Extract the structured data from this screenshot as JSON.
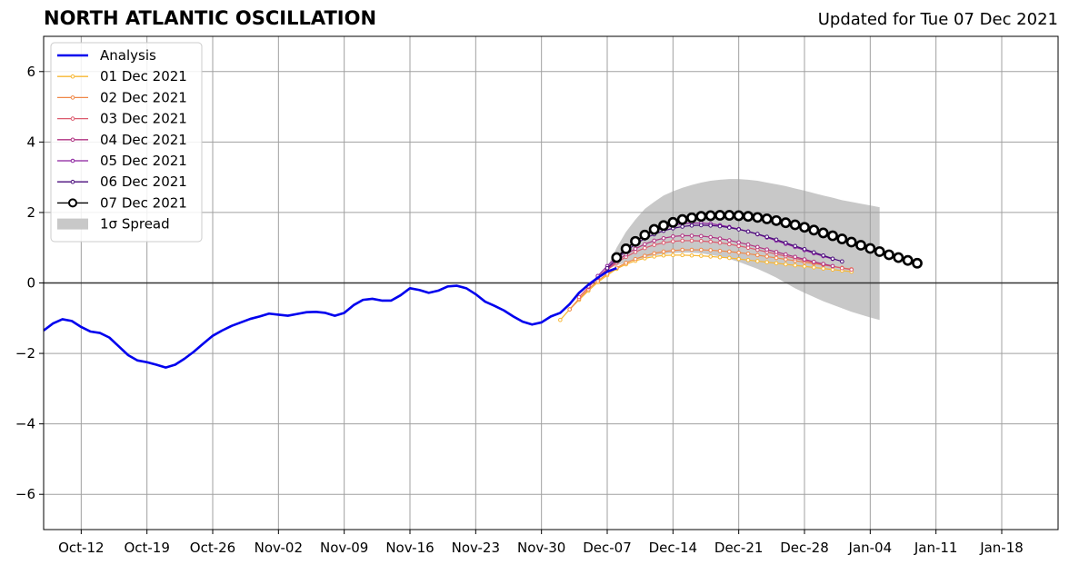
{
  "header": {
    "title": "NORTH ATLANTIC OSCILLATION",
    "updated": "Updated for Tue 07 Dec 2021"
  },
  "colors": {
    "analysis": "#0000ee",
    "spread": "#c8c8c8",
    "grid": "#a0a0a0",
    "fc_01": "#f7b733",
    "fc_02": "#f08848",
    "fc_03": "#dc5a6e",
    "fc_04": "#b03282",
    "fc_05": "#8a1e9e",
    "fc_06": "#4a0c7c",
    "fc_07": "#000000"
  },
  "chart_data": {
    "type": "line",
    "title": "NORTH ATLANTIC OSCILLATION",
    "subtitle": "Updated for Tue 07 Dec 2021",
    "xlabel": "",
    "ylabel": "",
    "x_ticks": [
      "Oct-12",
      "Oct-19",
      "Oct-26",
      "Nov-02",
      "Nov-09",
      "Nov-16",
      "Nov-23",
      "Nov-30",
      "Dec-07",
      "Dec-14",
      "Dec-21",
      "Dec-28",
      "Jan-04",
      "Jan-11",
      "Jan-18"
    ],
    "x_tick_dates": [
      "2021-10-12",
      "2021-10-19",
      "2021-10-26",
      "2021-11-02",
      "2021-11-09",
      "2021-11-16",
      "2021-11-23",
      "2021-11-30",
      "2021-12-07",
      "2021-12-14",
      "2021-12-21",
      "2021-12-28",
      "2022-01-04",
      "2022-01-11",
      "2022-01-18"
    ],
    "xlim": [
      "2021-10-08",
      "2022-01-24"
    ],
    "ylim": [
      -7,
      7
    ],
    "y_ticks": [
      "−6",
      "−4",
      "−2",
      "0",
      "2",
      "4",
      "6"
    ],
    "y_tick_values": [
      -6,
      -4,
      -2,
      0,
      2,
      4,
      6
    ],
    "grid": true,
    "legend_position": "top-left",
    "legend": [
      "Analysis",
      "01 Dec 2021",
      "02 Dec 2021",
      "03 Dec 2021",
      "04 Dec 2021",
      "05 Dec 2021",
      "06 Dec 2021",
      "07 Dec 2021",
      "1σ Spread"
    ],
    "analysis": {
      "name": "Analysis",
      "start": "2021-10-08",
      "values": [
        -1.35,
        -1.15,
        -1.03,
        -1.08,
        -1.25,
        -1.38,
        -1.42,
        -1.55,
        -1.8,
        -2.05,
        -2.2,
        -2.25,
        -2.32,
        -2.4,
        -2.32,
        -2.15,
        -1.95,
        -1.72,
        -1.5,
        -1.35,
        -1.22,
        -1.12,
        -1.02,
        -0.95,
        -0.87,
        -0.9,
        -0.93,
        -0.88,
        -0.83,
        -0.82,
        -0.85,
        -0.93,
        -0.85,
        -0.63,
        -0.48,
        -0.45,
        -0.5,
        -0.5,
        -0.35,
        -0.15,
        -0.2,
        -0.28,
        -0.22,
        -0.1,
        -0.08,
        -0.15,
        -0.32,
        -0.53,
        -0.65,
        -0.78,
        -0.95,
        -1.1,
        -1.18,
        -1.12,
        -0.95,
        -0.85,
        -0.6,
        -0.28,
        -0.05,
        0.15,
        0.32,
        0.42
      ]
    },
    "spread": {
      "name": "1σ Spread",
      "start": "2021-12-07",
      "upper": [
        0.45,
        1.0,
        1.45,
        1.8,
        2.1,
        2.3,
        2.48,
        2.6,
        2.7,
        2.78,
        2.85,
        2.9,
        2.93,
        2.95,
        2.95,
        2.93,
        2.9,
        2.85,
        2.8,
        2.75,
        2.68,
        2.62,
        2.55,
        2.48,
        2.42,
        2.35,
        2.3,
        2.25,
        2.2,
        2.15
      ],
      "lower": [
        0.4,
        0.5,
        0.58,
        0.65,
        0.72,
        0.78,
        0.82,
        0.85,
        0.86,
        0.86,
        0.84,
        0.8,
        0.75,
        0.68,
        0.6,
        0.5,
        0.4,
        0.28,
        0.15,
        0.0,
        -0.15,
        -0.28,
        -0.4,
        -0.52,
        -0.62,
        -0.72,
        -0.82,
        -0.9,
        -0.98,
        -1.05
      ]
    },
    "series": [
      {
        "name": "01 Dec 2021",
        "start": "2021-12-02",
        "values": [
          -1.05,
          -0.75,
          -0.48,
          -0.22,
          0.02,
          0.22,
          0.4,
          0.53,
          0.63,
          0.7,
          0.75,
          0.78,
          0.79,
          0.79,
          0.78,
          0.77,
          0.75,
          0.73,
          0.71,
          0.68,
          0.65,
          0.62,
          0.59,
          0.56,
          0.53,
          0.5,
          0.47,
          0.44,
          0.41,
          0.38,
          0.35,
          0.32
        ]
      },
      {
        "name": "02 Dec 2021",
        "start": "2021-12-03",
        "values": [
          -0.75,
          -0.45,
          -0.18,
          0.06,
          0.26,
          0.43,
          0.57,
          0.68,
          0.77,
          0.84,
          0.89,
          0.92,
          0.94,
          0.94,
          0.94,
          0.93,
          0.91,
          0.89,
          0.86,
          0.83,
          0.79,
          0.75,
          0.71,
          0.67,
          0.63,
          0.59,
          0.55,
          0.51,
          0.47,
          0.43,
          0.39
        ]
      },
      {
        "name": "03 Dec 2021",
        "start": "2021-12-04",
        "values": [
          -0.4,
          -0.12,
          0.14,
          0.37,
          0.57,
          0.74,
          0.88,
          0.99,
          1.08,
          1.14,
          1.18,
          1.2,
          1.2,
          1.19,
          1.17,
          1.14,
          1.1,
          1.05,
          1.0,
          0.94,
          0.88,
          0.82,
          0.76,
          0.7,
          0.64,
          0.58,
          0.52,
          0.47,
          0.42,
          0.38
        ]
      },
      {
        "name": "04 Dec 2021",
        "start": "2021-12-05",
        "values": [
          -0.1,
          0.16,
          0.4,
          0.62,
          0.81,
          0.97,
          1.1,
          1.2,
          1.27,
          1.32,
          1.34,
          1.34,
          1.33,
          1.3,
          1.26,
          1.21,
          1.15,
          1.09,
          1.02,
          0.95,
          0.88,
          0.81,
          0.74,
          0.67,
          0.6,
          0.54,
          0.48
        ]
      },
      {
        "name": "05 Dec 2021",
        "start": "2021-12-06",
        "values": [
          0.2,
          0.48,
          0.74,
          0.97,
          1.17,
          1.34,
          1.47,
          1.57,
          1.64,
          1.68,
          1.7,
          1.7,
          1.68,
          1.64,
          1.59,
          1.53,
          1.46,
          1.38,
          1.29,
          1.2,
          1.11,
          1.02,
          0.93,
          0.84,
          0.76,
          0.68
        ]
      },
      {
        "name": "06 Dec 2021",
        "start": "2021-12-07",
        "values": [
          0.42,
          0.68,
          0.91,
          1.1,
          1.26,
          1.38,
          1.48,
          1.55,
          1.6,
          1.63,
          1.64,
          1.63,
          1.61,
          1.57,
          1.52,
          1.46,
          1.39,
          1.31,
          1.23,
          1.14,
          1.05,
          0.96,
          0.87,
          0.78,
          0.69,
          0.61
        ]
      },
      {
        "name": "07 Dec 2021",
        "start": "2021-12-08",
        "values": [
          0.72,
          0.97,
          1.18,
          1.36,
          1.52,
          1.63,
          1.72,
          1.8,
          1.85,
          1.89,
          1.91,
          1.92,
          1.92,
          1.91,
          1.89,
          1.86,
          1.82,
          1.77,
          1.71,
          1.65,
          1.58,
          1.5,
          1.42,
          1.34,
          1.25,
          1.16,
          1.07,
          0.98,
          0.89,
          0.8,
          0.72,
          0.64,
          0.56
        ]
      }
    ]
  }
}
